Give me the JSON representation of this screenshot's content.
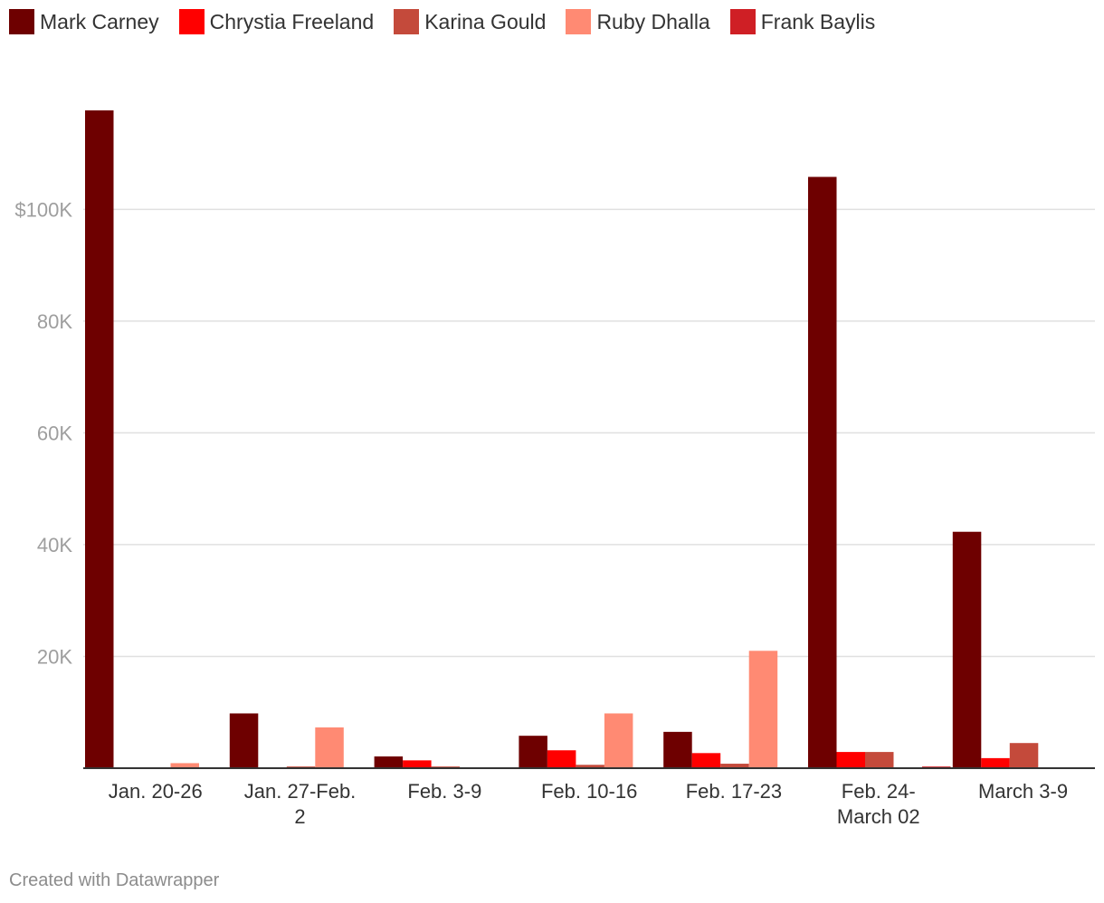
{
  "legend": [
    {
      "name": "Mark Carney",
      "color": "#6e0000"
    },
    {
      "name": "Chrystia Freeland",
      "color": "#ff0000"
    },
    {
      "name": "Karina Gould",
      "color": "#c44a3b"
    },
    {
      "name": "Ruby Dhalla",
      "color": "#ff8a73"
    },
    {
      "name": "Frank Baylis",
      "color": "#cf1f25"
    }
  ],
  "footer": "Created with Datawrapper",
  "chart_data": {
    "type": "bar",
    "categories": [
      [
        "Jan. 20-26"
      ],
      [
        "Jan. 27-Feb.",
        "2"
      ],
      [
        "Feb. 3-9"
      ],
      [
        "Feb. 10-16"
      ],
      [
        "Feb. 17-23"
      ],
      [
        "Feb. 24-",
        "March 02"
      ],
      [
        "March 3-9"
      ]
    ],
    "series": [
      {
        "name": "Mark Carney",
        "color": "#6e0000",
        "values": [
          117700,
          9800,
          2100,
          5800,
          6500,
          105800,
          42300
        ]
      },
      {
        "name": "Chrystia Freeland",
        "color": "#ff0000",
        "values": [
          0,
          0,
          1400,
          3200,
          2700,
          2900,
          1800
        ]
      },
      {
        "name": "Karina Gould",
        "color": "#c44a3b",
        "values": [
          0,
          300,
          300,
          600,
          800,
          2900,
          4500
        ]
      },
      {
        "name": "Ruby Dhalla",
        "color": "#ff8a73",
        "values": [
          900,
          7300,
          0,
          9800,
          21000,
          0,
          0
        ]
      },
      {
        "name": "Frank Baylis",
        "color": "#cf1f25",
        "values": [
          0,
          0,
          0,
          0,
          0,
          300,
          0
        ]
      }
    ],
    "yticks": [
      {
        "value": 20000,
        "label": "20K"
      },
      {
        "value": 40000,
        "label": "40K"
      },
      {
        "value": 60000,
        "label": "60K"
      },
      {
        "value": 80000,
        "label": "80K"
      },
      {
        "value": 100000,
        "label": "$100K"
      }
    ],
    "ylim": [
      0,
      117700
    ],
    "grid": true,
    "legend_position": "top-left"
  }
}
